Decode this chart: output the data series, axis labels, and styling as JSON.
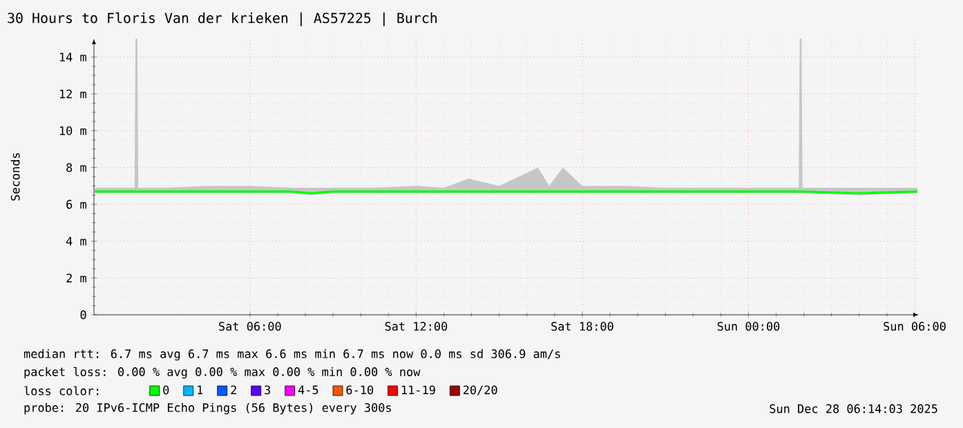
{
  "chart_data": {
    "type": "line",
    "title": "30 Hours to Floris Van der krieken | AS57225 | Burch",
    "ylabel": "Seconds",
    "legend_title": "loss color:",
    "legend": "bottom",
    "grid": true,
    "x": [
      "2025-12-27T00:24",
      "2025-12-27T01:00",
      "2025-12-27T01:50",
      "2025-12-27T01:52",
      "2025-12-27T01:56",
      "2025-12-27T01:58",
      "2025-12-27T03:00",
      "2025-12-27T04:30",
      "2025-12-27T06:00",
      "2025-12-27T07:30",
      "2025-12-27T08:12",
      "2025-12-27T09:00",
      "2025-12-27T10:30",
      "2025-12-27T12:00",
      "2025-12-27T13:00",
      "2025-12-27T13:54",
      "2025-12-27T15:00",
      "2025-12-27T16:24",
      "2025-12-27T16:48",
      "2025-12-27T17:18",
      "2025-12-27T18:00",
      "2025-12-27T19:30",
      "2025-12-27T21:00",
      "2025-12-28T00:00",
      "2025-12-28T01:49",
      "2025-12-28T01:51",
      "2025-12-28T01:55",
      "2025-12-28T01:57",
      "2025-12-28T04:00",
      "2025-12-28T06:06"
    ],
    "xlim": [
      "2025-12-27T00:22",
      "2025-12-28T06:09"
    ],
    "xticks": [
      {
        "value": "2025-12-27T06:00",
        "label": "Sat 06:00"
      },
      {
        "value": "2025-12-27T12:00",
        "label": "Sat 12:00"
      },
      {
        "value": "2025-12-27T18:00",
        "label": "Sat 18:00"
      },
      {
        "value": "2025-12-28T00:00",
        "label": "Sun 00:00"
      },
      {
        "value": "2025-12-28T06:00",
        "label": "Sun 06:00"
      }
    ],
    "ylim": [
      0,
      15
    ],
    "yticks": [
      0,
      {
        "value": 2,
        "label": "2 m"
      },
      {
        "value": 4,
        "label": "4 m"
      },
      {
        "value": 6,
        "label": "6 m"
      },
      {
        "value": 8,
        "label": "8 m"
      },
      {
        "value": 10,
        "label": "10 m"
      },
      {
        "value": 12,
        "label": "12 m"
      },
      {
        "value": 14,
        "label": "14 m"
      }
    ],
    "series": [
      {
        "name": "0",
        "color": "#00ff00",
        "values": [
          6.7,
          6.7,
          6.7,
          6.7,
          6.7,
          6.7,
          6.7,
          6.7,
          6.7,
          6.7,
          6.6,
          6.7,
          6.7,
          6.7,
          6.7,
          6.7,
          6.7,
          6.7,
          6.7,
          6.7,
          6.7,
          6.7,
          6.7,
          6.7,
          6.7,
          6.7,
          6.7,
          6.7,
          6.6,
          6.7
        ],
        "lower": [
          6.6,
          6.6,
          6.6,
          6.6,
          6.6,
          6.6,
          6.6,
          6.6,
          6.6,
          6.6,
          6.5,
          6.6,
          6.6,
          6.6,
          6.6,
          6.6,
          6.6,
          6.6,
          6.6,
          6.6,
          6.6,
          6.6,
          6.6,
          6.6,
          6.6,
          6.6,
          6.6,
          6.6,
          6.5,
          6.6
        ],
        "upper": [
          6.9,
          6.9,
          6.9,
          15,
          15,
          6.9,
          6.9,
          7.0,
          7.0,
          6.9,
          6.9,
          6.9,
          6.9,
          7.0,
          6.9,
          7.4,
          7.0,
          8.0,
          7.0,
          8.0,
          7.0,
          7.0,
          6.9,
          6.9,
          6.9,
          15,
          15,
          6.9,
          6.9,
          6.9
        ]
      },
      {
        "name": "1",
        "color": "#00b8ff",
        "values": [
          null,
          null,
          null,
          null,
          null,
          null,
          null,
          null,
          null,
          null,
          null,
          null,
          null,
          null,
          null,
          null,
          null,
          null,
          null,
          null,
          null,
          null,
          null,
          null,
          null,
          null,
          null,
          null,
          null,
          null
        ]
      },
      {
        "name": "2",
        "color": "#0059ff",
        "values": [
          null,
          null,
          null,
          null,
          null,
          null,
          null,
          null,
          null,
          null,
          null,
          null,
          null,
          null,
          null,
          null,
          null,
          null,
          null,
          null,
          null,
          null,
          null,
          null,
          null,
          null,
          null,
          null,
          null,
          null
        ]
      },
      {
        "name": "3",
        "color": "#5e00ff",
        "values": [
          null,
          null,
          null,
          null,
          null,
          null,
          null,
          null,
          null,
          null,
          null,
          null,
          null,
          null,
          null,
          null,
          null,
          null,
          null,
          null,
          null,
          null,
          null,
          null,
          null,
          null,
          null,
          null,
          null,
          null
        ]
      },
      {
        "name": "4-5",
        "color": "#ff00ff",
        "values": [
          null,
          null,
          null,
          null,
          null,
          null,
          null,
          null,
          null,
          null,
          null,
          null,
          null,
          null,
          null,
          null,
          null,
          null,
          null,
          null,
          null,
          null,
          null,
          null,
          null,
          null,
          null,
          null,
          null,
          null
        ]
      },
      {
        "name": "6-10",
        "color": "#ff5500",
        "values": [
          null,
          null,
          null,
          null,
          null,
          null,
          null,
          null,
          null,
          null,
          null,
          null,
          null,
          null,
          null,
          null,
          null,
          null,
          null,
          null,
          null,
          null,
          null,
          null,
          null,
          null,
          null,
          null,
          null,
          null
        ]
      },
      {
        "name": "11-19",
        "color": "#ff0000",
        "values": [
          null,
          null,
          null,
          null,
          null,
          null,
          null,
          null,
          null,
          null,
          null,
          null,
          null,
          null,
          null,
          null,
          null,
          null,
          null,
          null,
          null,
          null,
          null,
          null,
          null,
          null,
          null,
          null,
          null,
          null
        ]
      },
      {
        "name": "20/20",
        "color": "#a10000",
        "values": [
          null,
          null,
          null,
          null,
          null,
          null,
          null,
          null,
          null,
          null,
          null,
          null,
          null,
          null,
          null,
          null,
          null,
          null,
          null,
          null,
          null,
          null,
          null,
          null,
          null,
          null,
          null,
          null,
          null,
          null
        ]
      }
    ],
    "annotations": [
      "median rtt:  6.7 ms avg  6.7 ms max  6.6 ms min  6.7 ms now  0.0 ms sd  306.9   am/s",
      "packet loss: 0.00 % avg  0.00 % max  0.00 % min  0.00 % now",
      "probe:       20 IPv6-ICMP Echo Pings (56 Bytes) every 300s",
      "Sun Dec 28 06:14:03 2025"
    ]
  }
}
